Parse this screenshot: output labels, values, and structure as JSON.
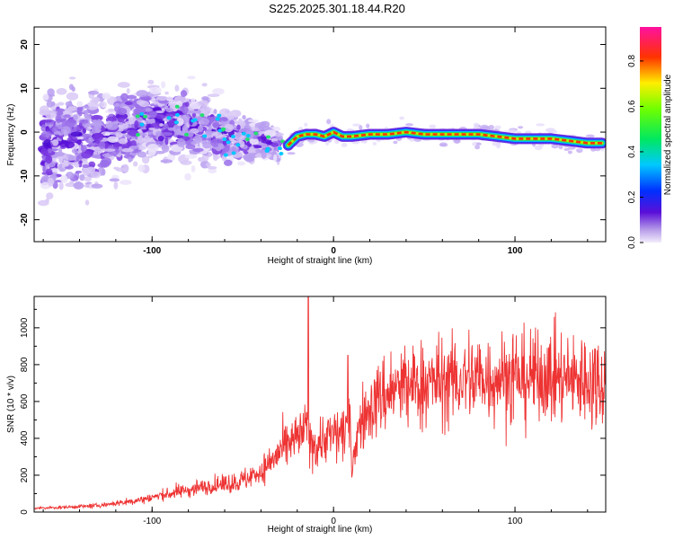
{
  "title": "S225.2025.301.18.44.R20",
  "colors": {
    "snr_line": "#ee3333",
    "background": "#ffffff",
    "axis": "#000000",
    "spectrogram_ridge": "#ff3300",
    "spectrogram_halo": "#22dd66",
    "spectrogram_scatter": "#6622dd"
  },
  "chart_data": [
    {
      "type": "heatmap",
      "title": "S225.2025.301.18.44.R20",
      "xlabel": "Height of straight line (km)",
      "ylabel": "Frequency (Hz)",
      "xlim": [
        -165,
        150
      ],
      "ylim": [
        -25,
        24
      ],
      "x_ticks": [
        -100,
        0,
        100
      ],
      "y_ticks": [
        -20,
        -10,
        0,
        10,
        20
      ],
      "grid": false,
      "colorbar": {
        "label": "Normalized spectral amplitude",
        "range": [
          0,
          0.95
        ],
        "ticks": [
          "0.0",
          "0.2",
          "0.4",
          "0.6",
          "0.8"
        ],
        "colormap": "rainbow (purple - blue - cyan - green - yellow - red - magenta)"
      },
      "ridge": {
        "x": [
          -25,
          -20,
          -15,
          -10,
          -5,
          0,
          5,
          10,
          20,
          30,
          40,
          50,
          60,
          70,
          80,
          90,
          100,
          110,
          120,
          130,
          140,
          148
        ],
        "y": [
          -3,
          -1,
          -0.5,
          -0.5,
          -1,
          0,
          -1,
          -1,
          -0.5,
          -0.5,
          0,
          -0.5,
          -0.5,
          -0.5,
          -0.5,
          -1,
          -1.5,
          -1.5,
          -1.5,
          -2,
          -2.5,
          -2.5
        ]
      },
      "scatter_band": {
        "x": [
          -160,
          -140,
          -120,
          -100,
          -80,
          -60,
          -40,
          -30
        ],
        "y_center": [
          -3,
          -2,
          -1,
          3,
          2,
          -1,
          -2,
          -3
        ],
        "y_spread": [
          12,
          11,
          9,
          8,
          8,
          6,
          4,
          3
        ]
      }
    },
    {
      "type": "line",
      "xlabel": "Height of straight line (km)",
      "ylabel": "SNR (10 * v/v)",
      "xlim": [
        -165,
        150
      ],
      "ylim": [
        0,
        1170
      ],
      "x_ticks": [
        -100,
        0,
        100
      ],
      "y_ticks": [
        0,
        200,
        400,
        600,
        800,
        1000
      ],
      "grid": false,
      "series": [
        {
          "x": [
            -165,
            -150,
            -130,
            -110,
            -100,
            -90,
            -80,
            -70,
            -60,
            -50,
            -40,
            -30,
            -25,
            -20,
            -15,
            -14,
            -13,
            -10,
            -5,
            0,
            5,
            8,
            9,
            10,
            12,
            15,
            20,
            25,
            30,
            40,
            50,
            60,
            70,
            80,
            90,
            100,
            110,
            120,
            130,
            140,
            150
          ],
          "y": [
            20,
            25,
            35,
            60,
            80,
            100,
            120,
            140,
            150,
            170,
            220,
            320,
            360,
            400,
            450,
            1170,
            400,
            360,
            400,
            420,
            440,
            850,
            500,
            220,
            380,
            480,
            560,
            620,
            650,
            680,
            700,
            700,
            720,
            720,
            740,
            740,
            730,
            740,
            720,
            720,
            720
          ],
          "spikes": [
            {
              "x": -14,
              "y": 1170
            },
            {
              "x": 8,
              "y": 850
            }
          ]
        }
      ]
    }
  ]
}
